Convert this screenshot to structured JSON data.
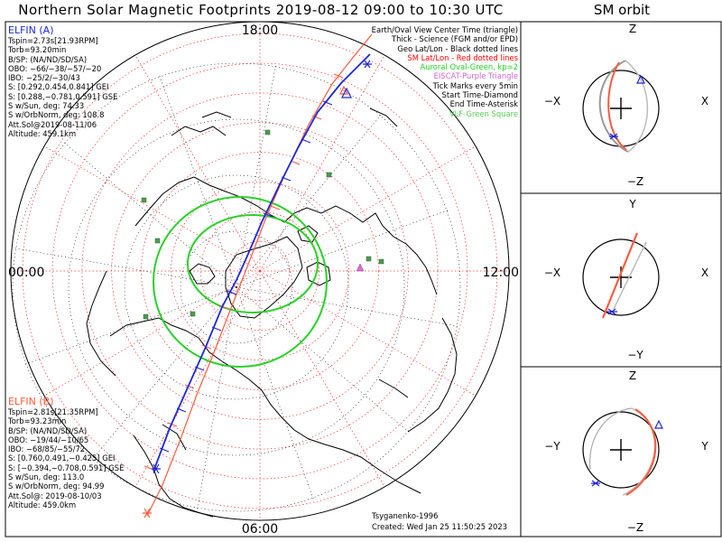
{
  "title": "Northern Solar Magnetic Footprints 2019-08-12 09:00 to 10:30 UTC",
  "orbit_title": "SM orbit",
  "map": {
    "mlt_labels": [
      "18:00",
      "00:00",
      "06:00",
      "12:00"
    ]
  },
  "elfin_a": {
    "name": "ELFIN (A)",
    "color": "#1d27d6",
    "lines": [
      "Tspin=2.73s[21.93RPM]",
      "Torb=93.20min",
      "B/SP: (NA/ND/SD/SA)",
      "OBO: −66/−38/−57/−20",
      "IBO: −25/2/−30/43",
      "S: [0.292,0.454,0.841] GEI",
      "S: [0.288,−0.781,0.591] GSE",
      "S w/Sun, deg: 74.33",
      "S w/OrbNorm, deg: 108.8",
      "Att.Sol@2019-08-11/06",
      "Altitude: 459.1km"
    ]
  },
  "elfin_b": {
    "name": "ELFIN (B)",
    "color": "#ff5a3c",
    "lines": [
      "Tspin=2.81s[21.35RPM]",
      "Torb=93.23min",
      "B/SP: (NA/ND/SD/SA)",
      "OBO: −19/44/−10/65",
      "IBO: −68/85/−55/72",
      "S: [0.760,0.491,−0.425] GEI",
      "S: [−0.394,−0.708,0.591] GSE",
      "S w/Sun, deg: 113.0",
      "S w/OrbNorm, deg: 94.99",
      "Att.Sol@: 2019-08-10/03",
      "Altitude: 459.0km"
    ]
  },
  "legend": [
    {
      "text": "Earth/Oval View Center Time (triangle)",
      "color": "#000000"
    },
    {
      "text": "Thick - Science (FGM and/or EPD)",
      "color": "#000000"
    },
    {
      "text": "Geo Lat/Lon - Black dotted lines",
      "color": "#000000"
    },
    {
      "text": "SM Lat/Lon - Red dotted lines",
      "color": "#ff0000"
    },
    {
      "text": "Auroral Oval-Green, kp=2",
      "color": "#22cc22"
    },
    {
      "text": "EISCAT-Purple Triangle",
      "color": "#cc66cc"
    },
    {
      "text": "Tick Marks every 5min",
      "color": "#000000"
    },
    {
      "text": "Start Time-Diamond",
      "color": "#000000"
    },
    {
      "text": "End Time-Asterisk",
      "color": "#000000"
    },
    {
      "text": "VLF-Green Square",
      "color": "#55cc55"
    }
  ],
  "credits": {
    "model": "Tsyganenko-1996",
    "created": "Created: Wed Jan 25 11:50:25 2023"
  },
  "orbit_panels": [
    {
      "top": "Z",
      "bottom": "−Z",
      "left": "−X",
      "right": "X"
    },
    {
      "top": "Y",
      "bottom": "−Y",
      "left": "−X",
      "right": "X"
    },
    {
      "top": "Z",
      "bottom": "−Z",
      "left": "−Y",
      "right": "Y"
    }
  ],
  "chart_data": {
    "type": "scatter",
    "projection": "north polar, solar magnetic (MLT around the edge)",
    "auroral_oval_kp": 2,
    "tick_interval_min": 5,
    "series": [
      {
        "name": "ELFIN (A)",
        "color": "#1d27d6"
      },
      {
        "name": "ELFIN (B)",
        "color": "#ff5a3c"
      }
    ]
  }
}
